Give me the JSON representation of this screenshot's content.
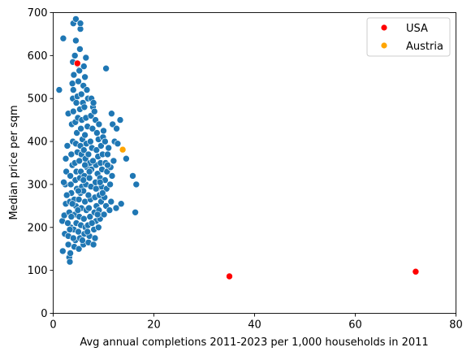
{
  "chart_data": {
    "type": "scatter",
    "xlabel": "Avg annual completions 2011-2023 per 1,000 households in 2011",
    "ylabel": "Median price per sqm",
    "xlim": [
      0,
      80
    ],
    "ylim": [
      0,
      700
    ],
    "xticks": [
      0,
      20,
      40,
      60,
      80
    ],
    "yticks": [
      0,
      100,
      200,
      300,
      400,
      500,
      600,
      700
    ],
    "grid": false,
    "legend_position": "top-right",
    "series": [
      {
        "color": "#1f77b4",
        "points": [
          [
            1.2,
            520
          ],
          [
            2.0,
            640
          ],
          [
            1.8,
            215
          ],
          [
            2.2,
            228
          ],
          [
            1.9,
            145
          ],
          [
            2.3,
            185
          ],
          [
            2.5,
            255
          ],
          [
            2.4,
            300
          ],
          [
            2.1,
            305
          ],
          [
            2.6,
            330
          ],
          [
            2.5,
            360
          ],
          [
            2.8,
            390
          ],
          [
            3.0,
            465
          ],
          [
            3.2,
            130
          ],
          [
            3.3,
            120
          ],
          [
            3.0,
            160
          ],
          [
            3.4,
            140
          ],
          [
            3.1,
            180
          ],
          [
            3.5,
            200
          ],
          [
            3.2,
            235
          ],
          [
            3.3,
            260
          ],
          [
            3.6,
            280
          ],
          [
            3.5,
            300
          ],
          [
            3.4,
            320
          ],
          [
            3.8,
            345
          ],
          [
            3.6,
            370
          ],
          [
            3.9,
            400
          ],
          [
            3.7,
            440
          ],
          [
            4.0,
            470
          ],
          [
            3.9,
            500
          ],
          [
            4.0,
            520
          ],
          [
            3.8,
            535
          ],
          [
            4.1,
            555
          ],
          [
            3.9,
            585
          ],
          [
            4.0,
            675
          ],
          [
            4.5,
            685
          ],
          [
            4.5,
            635
          ],
          [
            4.3,
            600
          ],
          [
            4.8,
            580
          ],
          [
            4.2,
            155
          ],
          [
            4.4,
            170
          ],
          [
            4.1,
            195
          ],
          [
            4.6,
            210
          ],
          [
            4.3,
            230
          ],
          [
            4.5,
            250
          ],
          [
            4.2,
            265
          ],
          [
            4.7,
            290
          ],
          [
            4.4,
            310
          ],
          [
            4.6,
            330
          ],
          [
            4.3,
            350
          ],
          [
            4.8,
            375
          ],
          [
            4.5,
            395
          ],
          [
            4.7,
            420
          ],
          [
            4.4,
            445
          ],
          [
            4.9,
            455
          ],
          [
            4.6,
            490
          ],
          [
            4.8,
            505
          ],
          [
            5.0,
            540
          ],
          [
            5.2,
            565
          ],
          [
            5.3,
            615
          ],
          [
            5.4,
            662
          ],
          [
            5.4,
            675
          ],
          [
            5.1,
            150
          ],
          [
            5.3,
            175
          ],
          [
            5.0,
            190
          ],
          [
            5.5,
            205
          ],
          [
            5.2,
            225
          ],
          [
            5.6,
            245
          ],
          [
            5.1,
            265
          ],
          [
            5.4,
            280
          ],
          [
            5.7,
            295
          ],
          [
            5.3,
            315
          ],
          [
            5.5,
            330
          ],
          [
            5.2,
            355
          ],
          [
            5.6,
            370
          ],
          [
            5.4,
            390
          ],
          [
            5.8,
            405
          ],
          [
            5.5,
            430
          ],
          [
            5.7,
            450
          ],
          [
            5.3,
            475
          ],
          [
            5.9,
            490
          ],
          [
            5.6,
            510
          ],
          [
            6.0,
            530
          ],
          [
            6.3,
            550
          ],
          [
            6.1,
            575
          ],
          [
            6.5,
            595
          ],
          [
            6.0,
            160
          ],
          [
            6.2,
            185
          ],
          [
            6.4,
            200
          ],
          [
            6.1,
            220
          ],
          [
            6.6,
            240
          ],
          [
            6.3,
            260
          ],
          [
            6.0,
            285
          ],
          [
            6.5,
            300
          ],
          [
            6.2,
            320
          ],
          [
            6.7,
            340
          ],
          [
            6.4,
            360
          ],
          [
            6.1,
            380
          ],
          [
            6.6,
            395
          ],
          [
            6.3,
            415
          ],
          [
            6.8,
            435
          ],
          [
            6.5,
            455
          ],
          [
            6.2,
            480
          ],
          [
            6.9,
            500
          ],
          [
            6.7,
            520
          ],
          [
            7.0,
            165
          ],
          [
            7.2,
            180
          ],
          [
            6.9,
            205
          ],
          [
            7.3,
            225
          ],
          [
            7.1,
            245
          ],
          [
            7.4,
            265
          ],
          [
            7.0,
            275
          ],
          [
            7.5,
            295
          ],
          [
            7.2,
            315
          ],
          [
            7.6,
            335
          ],
          [
            7.3,
            350
          ],
          [
            7.0,
            370
          ],
          [
            7.7,
            385
          ],
          [
            7.4,
            400
          ],
          [
            7.8,
            430
          ],
          [
            7.5,
            460
          ],
          [
            7.9,
            480
          ],
          [
            7.6,
            500
          ],
          [
            8.0,
            490
          ],
          [
            8.2,
            470
          ],
          [
            8.4,
            450
          ],
          [
            8.0,
            160
          ],
          [
            8.3,
            175
          ],
          [
            8.1,
            195
          ],
          [
            8.5,
            215
          ],
          [
            8.2,
            235
          ],
          [
            8.6,
            250
          ],
          [
            8.3,
            270
          ],
          [
            8.7,
            290
          ],
          [
            8.4,
            305
          ],
          [
            8.8,
            325
          ],
          [
            8.5,
            345
          ],
          [
            8.9,
            365
          ],
          [
            8.6,
            380
          ],
          [
            9.0,
            405
          ],
          [
            8.7,
            420
          ],
          [
            9.1,
            440
          ],
          [
            9.0,
            200
          ],
          [
            9.3,
            220
          ],
          [
            9.1,
            240
          ],
          [
            9.5,
            260
          ],
          [
            9.2,
            275
          ],
          [
            9.6,
            295
          ],
          [
            9.3,
            315
          ],
          [
            9.7,
            335
          ],
          [
            9.4,
            350
          ],
          [
            9.8,
            370
          ],
          [
            9.5,
            390
          ],
          [
            9.9,
            410
          ],
          [
            10.0,
            425
          ],
          [
            10.3,
            400
          ],
          [
            10.1,
            230
          ],
          [
            10.5,
            250
          ],
          [
            10.2,
            270
          ],
          [
            10.6,
            290
          ],
          [
            10.3,
            310
          ],
          [
            10.7,
            330
          ],
          [
            10.4,
            350
          ],
          [
            10.8,
            370
          ],
          [
            10.5,
            570
          ],
          [
            11.0,
            385
          ],
          [
            11.2,
            240
          ],
          [
            11.5,
            260
          ],
          [
            11.3,
            300
          ],
          [
            11.7,
            320
          ],
          [
            11.4,
            340
          ],
          [
            11.8,
            440
          ],
          [
            11.6,
            465
          ],
          [
            12.2,
            400
          ],
          [
            12.5,
            245
          ],
          [
            12.8,
            395
          ],
          [
            12.0,
            355
          ],
          [
            12.6,
            430
          ],
          [
            13.3,
            450
          ],
          [
            13.5,
            255
          ],
          [
            14.5,
            360
          ],
          [
            15.8,
            320
          ],
          [
            16.5,
            300
          ],
          [
            16.3,
            235
          ],
          [
            3.0,
            180
          ],
          [
            3.3,
            195
          ],
          [
            2.9,
            210
          ],
          [
            4.0,
            175
          ],
          [
            5.8,
            170
          ],
          [
            6.8,
            190
          ],
          [
            7.7,
            210
          ],
          [
            8.8,
            230
          ],
          [
            9.8,
            280
          ],
          [
            3.6,
            225
          ],
          [
            4.9,
            240
          ],
          [
            6.0,
            310
          ],
          [
            7.2,
            330
          ],
          [
            8.5,
            290
          ],
          [
            10.8,
            345
          ],
          [
            2.7,
            275
          ],
          [
            3.8,
            255
          ],
          [
            5.0,
            285
          ],
          [
            6.3,
            345
          ],
          [
            7.9,
            355
          ],
          [
            9.3,
            305
          ]
        ]
      },
      {
        "name": "USA",
        "color": "#ff0000",
        "points": [
          [
            4.8,
            582
          ],
          [
            35.0,
            86
          ],
          [
            72.0,
            97
          ]
        ]
      },
      {
        "name": "Austria",
        "color": "#ffa500",
        "points": [
          [
            13.8,
            381
          ]
        ]
      }
    ]
  }
}
